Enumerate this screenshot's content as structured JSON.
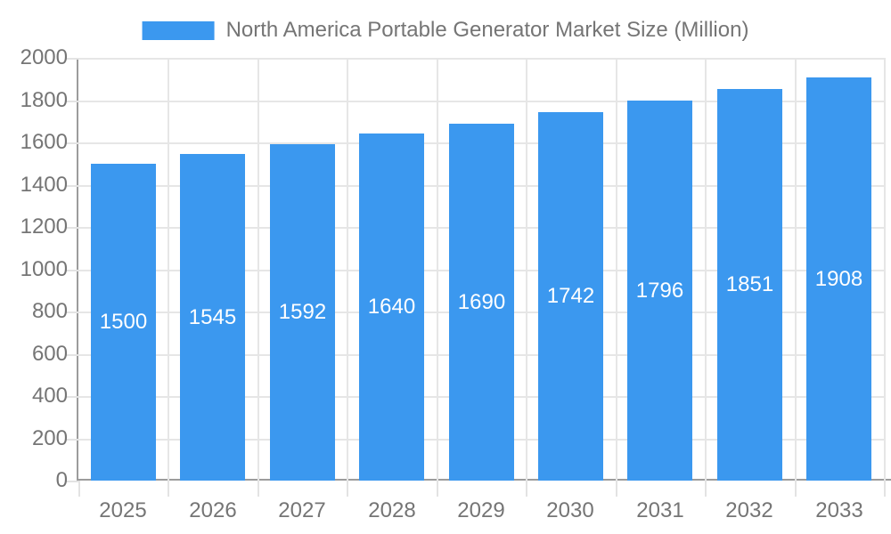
{
  "legend": {
    "label": "North America Portable Generator Market Size (Million)"
  },
  "chart_data": {
    "type": "bar",
    "title": "North America Portable Generator Market Size (Million)",
    "categories": [
      "2025",
      "2026",
      "2027",
      "2028",
      "2029",
      "2030",
      "2031",
      "2032",
      "2033"
    ],
    "values": [
      1500,
      1545,
      1592,
      1640,
      1690,
      1742,
      1796,
      1851,
      1908
    ],
    "value_labels": [
      "1500",
      "1545",
      "1592",
      "1640",
      "1690",
      "1742",
      "1796",
      "1851",
      "1908"
    ],
    "xlabel": "",
    "ylabel": "",
    "ylim": [
      0,
      2000
    ],
    "ytick_step": 200,
    "yticks": [
      0,
      200,
      400,
      600,
      800,
      1000,
      1200,
      1400,
      1600,
      1800,
      2000
    ],
    "grid": true,
    "legend_position": "top",
    "colors": {
      "bar": "#3B98EF",
      "value_label": "#FFFFFF",
      "axis_text": "#757575",
      "grid_line": "#E6E6E6",
      "tick_line": "#E3E3E3",
      "axis_line": "#9C9C9C",
      "background": "#FFFFFF"
    }
  }
}
